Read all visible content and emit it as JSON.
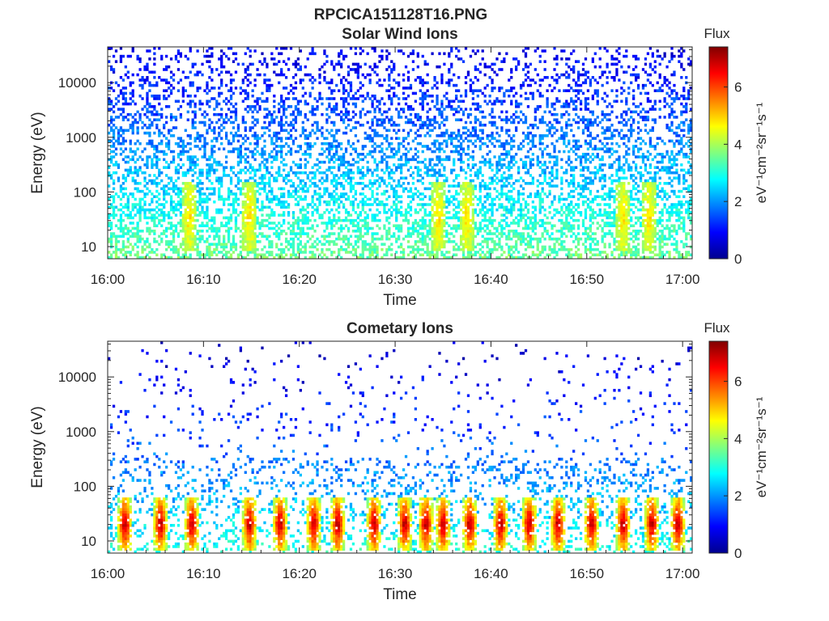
{
  "figure": {
    "title": "RPCICA151128T16.PNG"
  },
  "chart_data": [
    {
      "type": "heatmap",
      "title": "Solar Wind Ions",
      "xlabel": "Time",
      "ylabel": "Energy (eV)",
      "x_tick_labels": [
        "16:00",
        "16:10",
        "16:20",
        "16:30",
        "16:40",
        "16:50",
        "17:00"
      ],
      "x_tick_minutes": [
        0,
        10,
        20,
        30,
        40,
        50,
        60
      ],
      "xlim_minutes": [
        0,
        61
      ],
      "y_scale": "log",
      "y_tick_labels": [
        "10",
        "100",
        "1000",
        "10000"
      ],
      "y_tick_values": [
        10,
        100,
        1000,
        10000
      ],
      "ylim": [
        6,
        45000
      ],
      "colorbar": {
        "label": "Flux",
        "units": "eV⁻¹cm⁻²sr⁻¹s⁻¹",
        "range": [
          0,
          7.4
        ],
        "tick_labels": [
          "0",
          "2",
          "4",
          "6"
        ],
        "tick_values": [
          0,
          2,
          4,
          6
        ],
        "colormap": "jet"
      },
      "features": {
        "background_flux": {
          "low_energy": 3.6,
          "high_energy": 0.8
        },
        "low_energy_bursts_minutes": [
          8.5,
          14.8,
          34.5,
          37.5,
          53.8,
          56.5
        ],
        "burst_peak_flux": 4.8,
        "burst_energy_range_ev": [
          8,
          150
        ]
      }
    },
    {
      "type": "heatmap",
      "title": "Cometary Ions",
      "xlabel": "Time",
      "ylabel": "Energy (eV)",
      "x_tick_labels": [
        "16:00",
        "16:10",
        "16:20",
        "16:30",
        "16:40",
        "16:50",
        "17:00"
      ],
      "x_tick_minutes": [
        0,
        10,
        20,
        30,
        40,
        50,
        60
      ],
      "xlim_minutes": [
        0,
        61
      ],
      "y_scale": "log",
      "y_tick_labels": [
        "10",
        "100",
        "1000",
        "10000"
      ],
      "y_tick_values": [
        10,
        100,
        1000,
        10000
      ],
      "ylim": [
        6,
        45000
      ],
      "colorbar": {
        "label": "Flux",
        "units": "eV⁻¹cm⁻²sr⁻¹s⁻¹",
        "range": [
          0,
          7.4
        ],
        "tick_labels": [
          "0",
          "2",
          "4",
          "6"
        ],
        "tick_values": [
          0,
          2,
          4,
          6
        ],
        "colormap": "jet"
      },
      "features": {
        "background_flux": {
          "low_energy": 3.0,
          "high_energy": 0.5
        },
        "low_energy_bursts_minutes": [
          1.8,
          5.5,
          8.8,
          14.8,
          18,
          21.5,
          24,
          27.8,
          31,
          33.2,
          35,
          37.8,
          41,
          44,
          47,
          50.5,
          53.8,
          56.8,
          59.5
        ],
        "burst_peak_flux": 7.0,
        "burst_energy_range_ev": [
          7,
          60
        ]
      }
    }
  ]
}
